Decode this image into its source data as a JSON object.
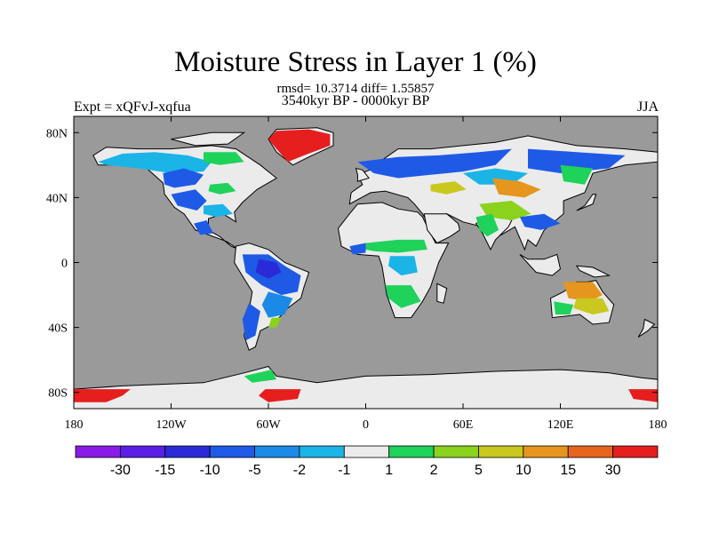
{
  "title": "Moisture Stress in Layer 1 (%)",
  "stats": "rmsd= 10.3714  diff= 1.55857",
  "period": "3540kyr BP - 0000kyr BP",
  "experiment": "Expt = xQFvJ-xqfua",
  "season": "JJA",
  "lat_ticks": [
    {
      "lat": 80,
      "label": "80N"
    },
    {
      "lat": 40,
      "label": "40N"
    },
    {
      "lat": 0,
      "label": "0"
    },
    {
      "lat": -40,
      "label": "40S"
    },
    {
      "lat": -80,
      "label": "80S"
    }
  ],
  "lon_ticks": [
    {
      "lon": -180,
      "label": "180"
    },
    {
      "lon": -120,
      "label": "120W"
    },
    {
      "lon": -60,
      "label": "60W"
    },
    {
      "lon": 0,
      "label": "0"
    },
    {
      "lon": 60,
      "label": "60E"
    },
    {
      "lon": 120,
      "label": "120E"
    },
    {
      "lon": 180,
      "label": "180"
    }
  ],
  "colorbar": {
    "colors": [
      "#8a1ae6",
      "#5a1ee6",
      "#2a2ad8",
      "#1e5ae6",
      "#1a8ae6",
      "#1ab4e6",
      "#ebebeb",
      "#1ed25a",
      "#8ad21e",
      "#c8c81e",
      "#e6961e",
      "#e6641e",
      "#e61e1e"
    ],
    "labels": [
      "-30",
      "-15",
      "-10",
      "-5",
      "-2",
      "-1",
      "1",
      "2",
      "5",
      "10",
      "15",
      "30"
    ]
  },
  "ocean_color": "#9a9a9a",
  "land_color": "#ebebeb"
}
